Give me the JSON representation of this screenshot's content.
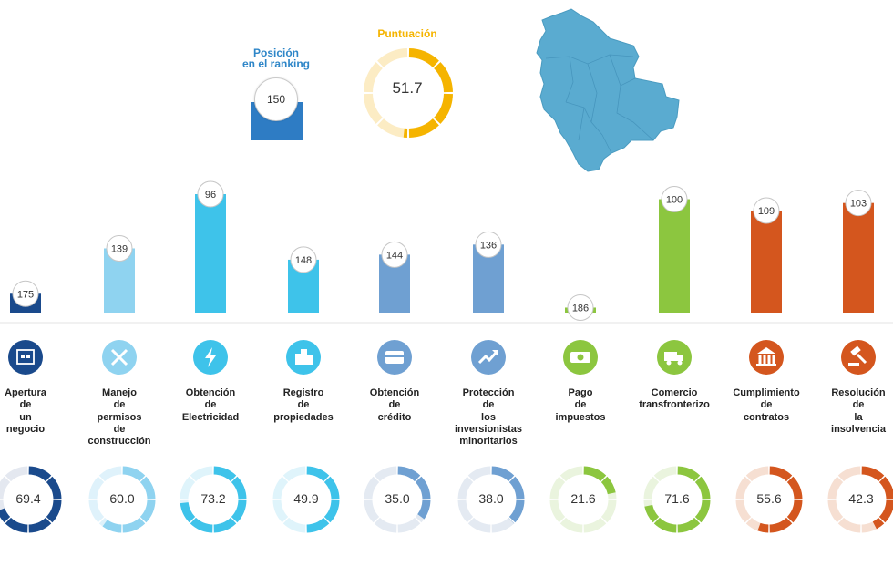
{
  "header": {
    "rank_title_line1": "Posición",
    "rank_title_line2": "en el ranking",
    "rank_value": "150",
    "score_title": "Puntuación",
    "score_value": "51.7",
    "score_fraction": 0.517,
    "rank_color": "#2e7cc4",
    "score_color": "#f5b400",
    "score_track_color": "#fcecc4"
  },
  "map": {
    "color": "#5aabd0"
  },
  "chart_data": {
    "type": "bar",
    "categories": [
      "Apertura de un negocio",
      "Manejo de permisos de construcción",
      "Obtención de Electricidad",
      "Registro de propiedades",
      "Obtención de crédito",
      "Protección de los inversionistas minoritarios",
      "Pago de impuestos",
      "Comercio transfronterizo",
      "Cumplimiento de contratos",
      "Resolución de la insolvencia"
    ],
    "series": [
      {
        "values": [
          175,
          139,
          96,
          148,
          144,
          136,
          186,
          100,
          109,
          103
        ]
      },
      {
        "values": [
          69.4,
          60.0,
          73.2,
          49.9,
          35.0,
          38.0,
          21.6,
          71.6,
          55.6,
          42.3
        ]
      }
    ],
    "rank_labels": [
      "175",
      "139",
      "96",
      "148",
      "144",
      "136",
      "186",
      "100",
      "109",
      "103"
    ],
    "score_labels": [
      "69.4",
      "60.0",
      "73.2",
      "49.9",
      "35.0",
      "38.0",
      "21.6",
      "71.6",
      "55.6",
      "42.3"
    ],
    "ylim": [
      190,
      0
    ],
    "label_lines": [
      [
        "Apertura",
        "de",
        "un",
        "negocio"
      ],
      [
        "Manejo",
        "de",
        "permisos",
        "de",
        "construcción"
      ],
      [
        "Obtención",
        "de",
        "Electricidad"
      ],
      [
        "Registro",
        "de",
        "propiedades"
      ],
      [
        "Obtención",
        "de",
        "crédito"
      ],
      [
        "Protección",
        "de",
        "los",
        "inversionistas",
        "minoritarios"
      ],
      [
        "Pago",
        "de",
        "impuestos"
      ],
      [
        "Comercio",
        "transfronterizo"
      ],
      [
        "Cumplimiento",
        "de",
        "contratos"
      ],
      [
        "Resolución",
        "de",
        "la",
        "insolvencia"
      ]
    ],
    "colors": [
      "#1a4a8c",
      "#8fd3f0",
      "#3ec3ea",
      "#3ec3ea",
      "#6fa0d2",
      "#6fa0d2",
      "#8cc63f",
      "#8cc63f",
      "#d4561e",
      "#d4561e"
    ],
    "track_colors": [
      "#e4e8f0",
      "#dff2fb",
      "#dff4fb",
      "#dff4fb",
      "#e4eaf2",
      "#e4eaf2",
      "#eaf4de",
      "#eaf4de",
      "#f6dfd2",
      "#f6dfd2"
    ],
    "icons": [
      "building-icon",
      "tools-icon",
      "lightning-icon",
      "city-icon",
      "credit-card-icon",
      "trend-chart-icon",
      "money-icon",
      "truck-icon",
      "courthouse-icon",
      "gavel-icon"
    ]
  }
}
